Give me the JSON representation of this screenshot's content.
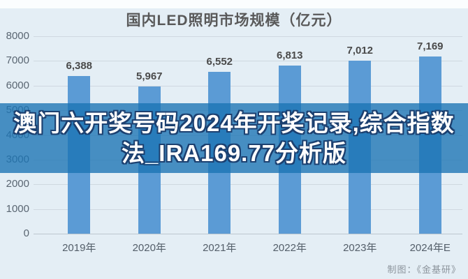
{
  "title": "国内LED照明市场规模（亿元）",
  "overlay_banner": {
    "line1": "澳门六开奖号码2024年开奖记录,综合指数",
    "line2": "法_IRA169.77分析版",
    "band_color": "rgba(25,115,180,0.78)",
    "text_color": "#ffffff",
    "outline_color": "#1c4070"
  },
  "credit": "制图：《金基研》",
  "chart_data": {
    "type": "bar",
    "title": "国内LED照明市场规模（亿元）",
    "categories": [
      "2019年",
      "2020年",
      "2021年",
      "2022年",
      "2023年",
      "2024年E"
    ],
    "values": [
      6388,
      5967,
      6552,
      6813,
      7012,
      7169
    ],
    "value_labels": [
      "6,388",
      "5,967",
      "6,552",
      "6,813",
      "7,012",
      "7,169"
    ],
    "xlabel": "",
    "ylabel": "",
    "ylim": [
      0,
      8000
    ],
    "ytick_step": 1000,
    "yticks": [
      8000,
      7000,
      6000,
      5000,
      4000,
      3000,
      2000,
      1000,
      0
    ],
    "grid": true,
    "legend": false,
    "bar_color": "#5b9bd5"
  }
}
